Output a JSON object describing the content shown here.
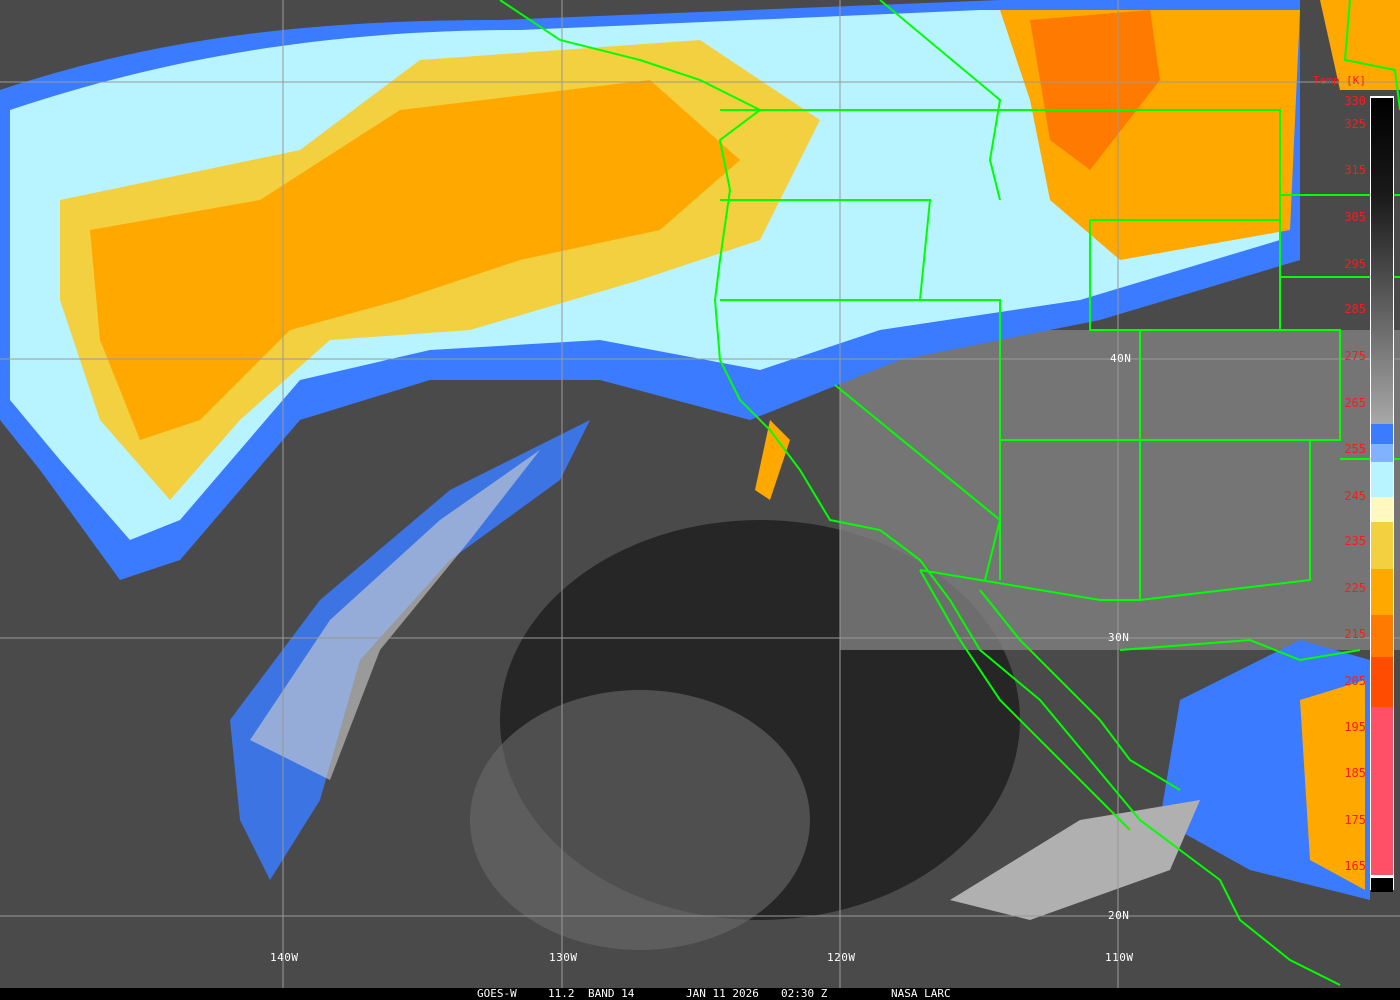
{
  "caption": {
    "satellite": "GOES-W",
    "wavelength": "11.2",
    "band": "BAND 14",
    "date": "JAN 11 2026",
    "time": "02:30 Z",
    "source": "NASA LARC"
  },
  "graticule": {
    "longitude_labels": [
      "140W",
      "130W",
      "120W",
      "110W"
    ],
    "latitude_labels": [
      "40N",
      "30N",
      "20N"
    ]
  },
  "colorbar": {
    "title": "Temp [K]",
    "ticks": [
      "330",
      "325",
      "315",
      "305",
      "295",
      "285",
      "275",
      "265",
      "255",
      "245",
      "235",
      "225",
      "215",
      "205",
      "195",
      "185",
      "175",
      "165"
    ],
    "colors": {
      "gray_top": "#000000",
      "gray_bottom": "#a8a8a8",
      "blue": "#3b7bff",
      "light_blue": "#7fb3ff",
      "cyan": "#b8f4ff",
      "cream": "#fff8c0",
      "yellow": "#f2d040",
      "orange": "#ffa800",
      "dark_orange": "#ff7a00",
      "red_orange": "#ff4c00",
      "pink": "#ff5068",
      "black": "#000000"
    }
  },
  "colors": {
    "coastline": "#00ff00",
    "label": "#ffffff",
    "scale_label": "#ff1a1a"
  }
}
